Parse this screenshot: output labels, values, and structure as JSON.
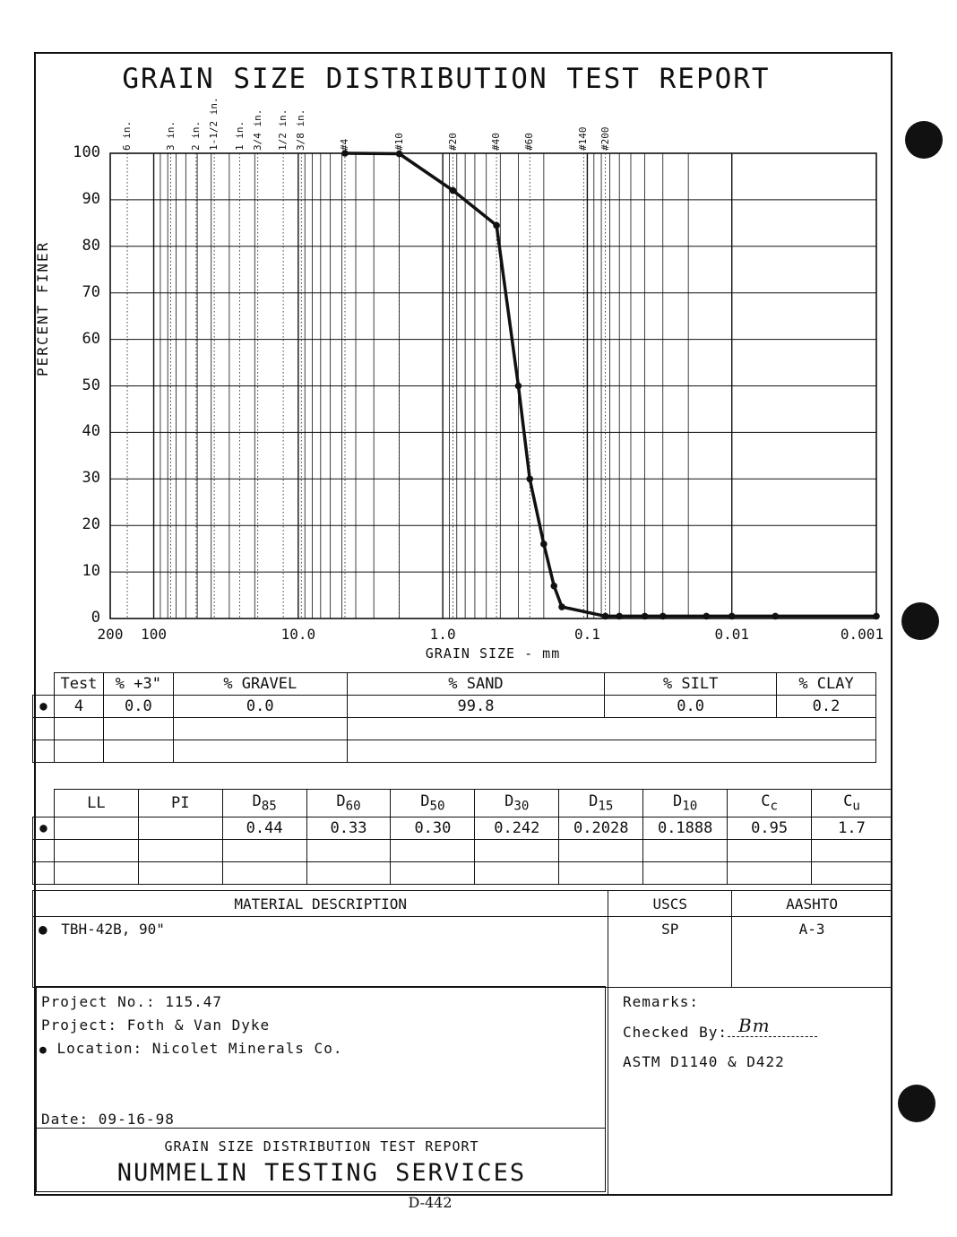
{
  "header": {
    "title": "GRAIN SIZE DISTRIBUTION TEST REPORT"
  },
  "chart_data": {
    "type": "line",
    "xlabel": "GRAIN SIZE - mm",
    "ylabel": "PERCENT FINER",
    "x_scale": "log-reversed",
    "xlim": [
      200,
      0.001
    ],
    "ylim": [
      0,
      100
    ],
    "x_tick_labels": [
      "200",
      "100",
      "10.0",
      "1.0",
      "0.1",
      "0.01",
      "0.001"
    ],
    "y_tick_labels": [
      "0",
      "10",
      "20",
      "30",
      "40",
      "50",
      "60",
      "70",
      "80",
      "90",
      "100"
    ],
    "sieve_labels": [
      "6 in.",
      "3 in.",
      "2 in.",
      "1-1/2 in.",
      "1 in.",
      "3/4 in.",
      "1/2 in.",
      "3/8 in.",
      "#4",
      "#10",
      "#20",
      "#40",
      "#60",
      "#140",
      "#200"
    ],
    "sieve_sizes_mm": [
      152.4,
      76.2,
      50.8,
      38.1,
      25.4,
      19.05,
      12.7,
      9.525,
      4.75,
      2.0,
      0.85,
      0.425,
      0.25,
      0.106,
      0.075
    ],
    "series": [
      {
        "x": [
          4.75,
          2.0,
          0.85,
          0.425,
          0.3,
          0.25,
          0.2,
          0.17,
          0.15,
          0.075,
          0.06,
          0.04,
          0.03,
          0.015,
          0.01,
          0.005,
          0.001
        ],
        "y": [
          100,
          99.9,
          92,
          84.5,
          50,
          30,
          16,
          7,
          2.5,
          0.5,
          0.5,
          0.5,
          0.5,
          0.5,
          0.5,
          0.5,
          0.5
        ]
      }
    ]
  },
  "gradation_table": {
    "headers": [
      "Test",
      "% +3\"",
      "% GRAVEL",
      "% SAND",
      "% SILT",
      "% CLAY"
    ],
    "row": [
      "4",
      "0.0",
      "0.0",
      "99.8",
      "0.0",
      "0.2"
    ]
  },
  "params_table": {
    "headers": [
      {
        "main": "LL",
        "sub": ""
      },
      {
        "main": "PI",
        "sub": ""
      },
      {
        "main": "D",
        "sub": "85"
      },
      {
        "main": "D",
        "sub": "60"
      },
      {
        "main": "D",
        "sub": "50"
      },
      {
        "main": "D",
        "sub": "30"
      },
      {
        "main": "D",
        "sub": "15"
      },
      {
        "main": "D",
        "sub": "10"
      },
      {
        "main": "C",
        "sub": "c"
      },
      {
        "main": "C",
        "sub": "u"
      }
    ],
    "row": [
      "",
      "",
      "0.44",
      "0.33",
      "0.30",
      "0.242",
      "0.2028",
      "0.1888",
      "0.95",
      "1.7"
    ]
  },
  "material": {
    "header": "MATERIAL DESCRIPTION",
    "uscs_header": "USCS",
    "aashto_header": "AASHTO",
    "description": "TBH-42B, 90\"",
    "uscs": "SP",
    "aashto": "A-3"
  },
  "project": {
    "number": "Project No.: 115.47",
    "name": "Project: Foth & Van Dyke",
    "location": "Location: Nicolet Minerals Co.",
    "date": "Date: 09-16-98"
  },
  "remarks": {
    "label": "Remarks:",
    "checked_by": "Checked By:",
    "checked_sig": "Bm",
    "astm": "ASTM D1140 & D422"
  },
  "footer": {
    "small": "GRAIN SIZE DISTRIBUTION TEST REPORT",
    "company": "NUMMELIN TESTING SERVICES",
    "page": "D-442"
  },
  "bullet": "●"
}
